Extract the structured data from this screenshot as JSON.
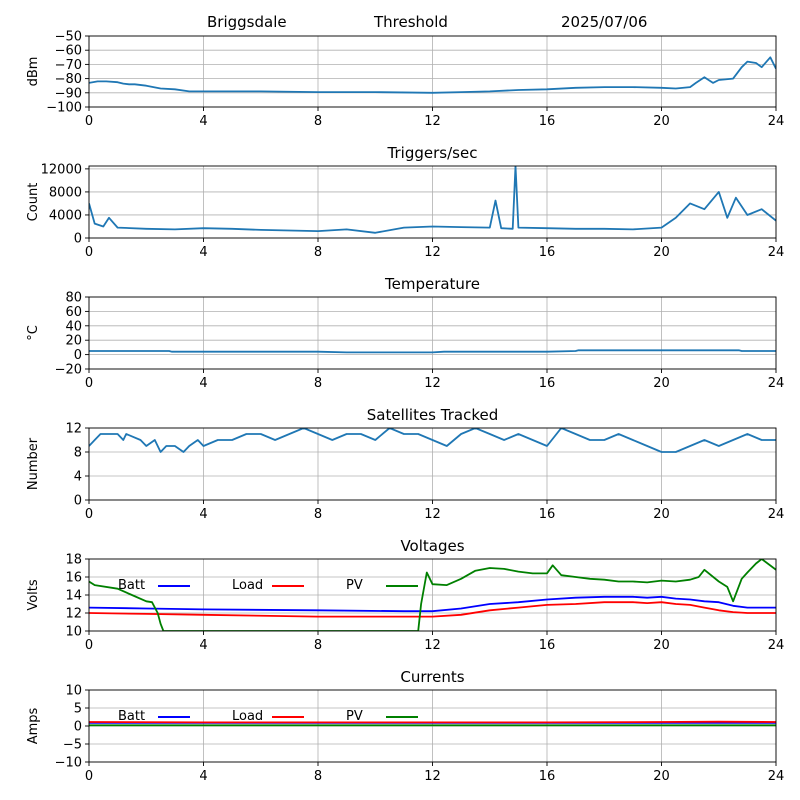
{
  "header": {
    "site": "Briggsdale",
    "label": "Threshold",
    "date": "2025/07/06"
  },
  "colors": {
    "series": "#1f77b4",
    "batt": "#0000ff",
    "load": "#ff0000",
    "pv": "#008000",
    "grid": "#b0b0b0"
  },
  "chart_data": [
    {
      "type": "line",
      "title": "",
      "ylabel": "dBm",
      "xlim": [
        0,
        24
      ],
      "ylim": [
        -100,
        -50
      ],
      "xticks": [
        "0",
        "4",
        "8",
        "12",
        "16",
        "20",
        "24"
      ],
      "yticks": [
        "−100",
        "−90",
        "−80",
        "−70",
        "−60",
        "−50"
      ],
      "grid": true,
      "series": [
        {
          "x": [
            0,
            0.3,
            0.6,
            1.0,
            1.2,
            1.4,
            1.6,
            2.0,
            2.5,
            3.0,
            3.5,
            4,
            6,
            8,
            10,
            12,
            13,
            14,
            15,
            16,
            17,
            18,
            19,
            20,
            20.5,
            21,
            21.2,
            21.5,
            21.8,
            22,
            22.5,
            22.8,
            23,
            23.3,
            23.5,
            23.8,
            24
          ],
          "y": [
            -83,
            -82,
            -82,
            -82.5,
            -83.5,
            -84,
            -84,
            -85,
            -87,
            -87.5,
            -89,
            -89,
            -89,
            -89.5,
            -89.5,
            -90,
            -89.5,
            -89,
            -88,
            -87.5,
            -86.5,
            -86,
            -86,
            -86.5,
            -87,
            -86,
            -83,
            -79,
            -83,
            -81,
            -80,
            -72,
            -68,
            -69,
            -72,
            -65,
            -73
          ]
        }
      ]
    },
    {
      "type": "line",
      "title": "Triggers/sec",
      "ylabel": "Count",
      "xlim": [
        0,
        24
      ],
      "ylim": [
        0,
        12500
      ],
      "xticks": [
        "0",
        "4",
        "8",
        "12",
        "16",
        "20",
        "24"
      ],
      "yticks": [
        "0",
        "4000",
        "8000",
        "12000"
      ],
      "yticks_values": [
        0,
        4000,
        8000,
        12000
      ],
      "grid": true,
      "series": [
        {
          "x": [
            0,
            0.2,
            0.5,
            0.7,
            1,
            2,
            3,
            4,
            5,
            6,
            7,
            8,
            9,
            10,
            11,
            12,
            13,
            14,
            14.2,
            14.4,
            14.8,
            14.9,
            15,
            16,
            17,
            18,
            19,
            20,
            20.5,
            21,
            21.5,
            22,
            22.3,
            22.6,
            23,
            23.5,
            24
          ],
          "y": [
            6000,
            2500,
            2000,
            3500,
            1800,
            1600,
            1500,
            1700,
            1600,
            1400,
            1300,
            1200,
            1500,
            900,
            1800,
            2000,
            1900,
            1800,
            6500,
            1700,
            1600,
            12500,
            1800,
            1700,
            1600,
            1600,
            1500,
            1800,
            3500,
            6000,
            5000,
            8000,
            3500,
            7000,
            4000,
            5000,
            3000
          ]
        }
      ]
    },
    {
      "type": "line",
      "title": "Temperature",
      "ylabel": "°C",
      "xlim": [
        0,
        24
      ],
      "ylim": [
        -20,
        80
      ],
      "xticks": [
        "0",
        "4",
        "8",
        "12",
        "16",
        "20",
        "24"
      ],
      "yticks": [
        "−20",
        "0",
        "20",
        "40",
        "60",
        "80"
      ],
      "grid": true,
      "series": [
        {
          "x": [
            0,
            2.8,
            2.9,
            8,
            9,
            12,
            12.4,
            16,
            17,
            17.1,
            22.7,
            22.8,
            24
          ],
          "y": [
            5,
            5,
            4,
            4,
            3,
            3,
            4,
            4,
            5,
            6,
            6,
            5,
            5
          ]
        }
      ]
    },
    {
      "type": "line",
      "title": "Satellites Tracked",
      "ylabel": "Number",
      "xlim": [
        0,
        24
      ],
      "ylim": [
        0,
        12
      ],
      "xticks": [
        "0",
        "4",
        "8",
        "12",
        "16",
        "20",
        "24"
      ],
      "yticks": [
        "0",
        "4",
        "8",
        "12"
      ],
      "grid": true,
      "series": [
        {
          "x": [
            0,
            0.2,
            0.4,
            1,
            1.2,
            1.3,
            1.8,
            2,
            2.3,
            2.5,
            2.7,
            3,
            3.3,
            3.5,
            3.8,
            4,
            4.5,
            5,
            5.5,
            6,
            6.5,
            7,
            7.5,
            8,
            8.5,
            9,
            9.5,
            10,
            10.5,
            11,
            11.5,
            12,
            12.5,
            13,
            13.5,
            14,
            14.5,
            15,
            15.5,
            16,
            16.5,
            17,
            17.5,
            18,
            18.5,
            19,
            19.5,
            20,
            20.5,
            21,
            21.5,
            22,
            22.5,
            23,
            23.5,
            24
          ],
          "y": [
            9,
            10,
            11,
            11,
            10,
            11,
            10,
            9,
            10,
            8,
            9,
            9,
            8,
            9,
            10,
            9,
            10,
            10,
            11,
            11,
            10,
            11,
            12,
            11,
            10,
            11,
            11,
            10,
            12,
            11,
            11,
            10,
            9,
            11,
            12,
            11,
            10,
            11,
            10,
            9,
            12,
            11,
            10,
            10,
            11,
            10,
            9,
            8,
            8,
            9,
            10,
            9,
            10,
            11,
            10,
            10
          ]
        }
      ]
    },
    {
      "type": "line",
      "title": "Voltages",
      "ylabel": "Volts",
      "xlim": [
        0,
        24
      ],
      "ylim": [
        10,
        18
      ],
      "xticks": [
        "0",
        "4",
        "8",
        "12",
        "16",
        "20",
        "24"
      ],
      "yticks": [
        "10",
        "12",
        "14",
        "16",
        "18"
      ],
      "grid": true,
      "legend": [
        "Batt",
        "Load",
        "PV"
      ],
      "series": [
        {
          "name": "Batt",
          "color": "#0000ff",
          "x": [
            0,
            2,
            4,
            8,
            11,
            12,
            13,
            14,
            15,
            16,
            17,
            18,
            19,
            19.5,
            20,
            20.5,
            21,
            21.5,
            22,
            22.5,
            23,
            23.5,
            24
          ],
          "y": [
            12.6,
            12.5,
            12.4,
            12.3,
            12.2,
            12.2,
            12.5,
            13.0,
            13.2,
            13.5,
            13.7,
            13.8,
            13.8,
            13.7,
            13.8,
            13.6,
            13.5,
            13.3,
            13.2,
            12.8,
            12.6,
            12.6,
            12.6
          ]
        },
        {
          "name": "Load",
          "color": "#ff0000",
          "x": [
            0,
            2,
            4,
            8,
            11,
            12,
            13,
            14,
            15,
            16,
            17,
            18,
            19,
            19.5,
            20,
            20.5,
            21,
            21.5,
            22,
            22.5,
            23,
            23.5,
            24
          ],
          "y": [
            12.0,
            11.9,
            11.8,
            11.6,
            11.6,
            11.6,
            11.8,
            12.3,
            12.6,
            12.9,
            13.0,
            13.2,
            13.2,
            13.1,
            13.2,
            13.0,
            12.9,
            12.6,
            12.3,
            12.1,
            12.0,
            12.0,
            12.0
          ]
        },
        {
          "name": "PV",
          "color": "#008000",
          "x": [
            0,
            0.2,
            1,
            1.5,
            2,
            2.2,
            2.4,
            2.5,
            2.6,
            11.5,
            11.6,
            11.8,
            12,
            12.5,
            13,
            13.5,
            14,
            14.5,
            15,
            15.5,
            16,
            16.2,
            16.5,
            17,
            17.5,
            18,
            18.5,
            19,
            19.5,
            20,
            20.5,
            21,
            21.3,
            21.5,
            22,
            22.3,
            22.5,
            22.8,
            23,
            23.3,
            23.5,
            24
          ],
          "y": [
            15.5,
            15.1,
            14.7,
            14.0,
            13.3,
            13.2,
            12.0,
            10.8,
            10.0,
            10.0,
            13.0,
            16.5,
            15.2,
            15.1,
            15.8,
            16.7,
            17.0,
            16.9,
            16.6,
            16.4,
            16.4,
            17.3,
            16.2,
            16.0,
            15.8,
            15.7,
            15.5,
            15.5,
            15.4,
            15.6,
            15.5,
            15.7,
            16.0,
            16.8,
            15.5,
            14.9,
            13.3,
            15.8,
            16.5,
            17.5,
            18.0,
            16.8
          ]
        }
      ]
    },
    {
      "type": "line",
      "title": "Currents",
      "ylabel": "Amps",
      "xlim": [
        0,
        24
      ],
      "ylim": [
        -10,
        10
      ],
      "xticks": [
        "0",
        "4",
        "8",
        "12",
        "16",
        "20",
        "24"
      ],
      "yticks": [
        "−10",
        "−5",
        "0",
        "5",
        "10"
      ],
      "grid": true,
      "legend": [
        "Batt",
        "Load",
        "PV"
      ],
      "series": [
        {
          "name": "Batt",
          "color": "#0000ff",
          "x": [
            0,
            24
          ],
          "y": [
            0.9,
            0.9
          ]
        },
        {
          "name": "Load",
          "color": "#ff0000",
          "x": [
            0,
            4,
            8,
            12,
            16,
            20,
            22,
            24
          ],
          "y": [
            1.1,
            1.0,
            1.0,
            1.0,
            1.0,
            1.1,
            1.2,
            1.1
          ]
        },
        {
          "name": "PV",
          "color": "#008000",
          "x": [
            0,
            24
          ],
          "y": [
            0.2,
            0.2
          ]
        }
      ]
    }
  ]
}
